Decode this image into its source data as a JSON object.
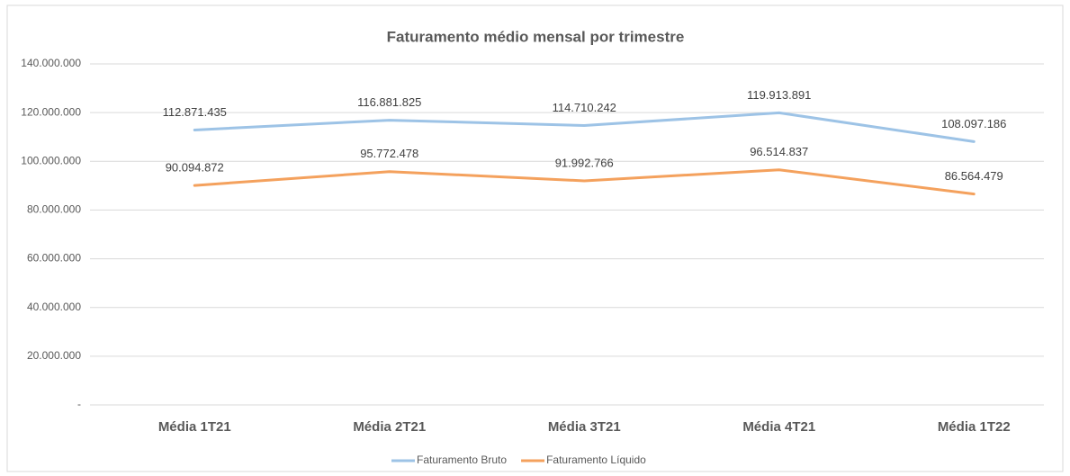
{
  "chart_data": {
    "type": "line",
    "title": "Faturamento médio mensal por trimestre",
    "categories": [
      "Média 1T21",
      "Média 2T21",
      "Média 3T21",
      "Média 4T21",
      "Média 1T22"
    ],
    "series": [
      {
        "name": "Faturamento Bruto",
        "color": "#9dc3e6",
        "values": [
          112871435,
          116881825,
          114710242,
          119913891,
          108097186
        ],
        "value_labels": [
          "112.871.435",
          "116.881.825",
          "114.710.242",
          "119.913.891",
          "108.097.186"
        ]
      },
      {
        "name": "Faturamento Líquido",
        "color": "#f4a15d",
        "values": [
          90094872,
          95772478,
          91992766,
          96514837,
          86564479
        ],
        "value_labels": [
          "90.094.872",
          "95.772.478",
          "91.992.766",
          "96.514.837",
          "86.564.479"
        ]
      }
    ],
    "ylim": [
      0,
      140000000
    ],
    "yticks": [
      {
        "value": 0,
        "label": "-"
      },
      {
        "value": 20000000,
        "label": "20.000.000"
      },
      {
        "value": 40000000,
        "label": "40.000.000"
      },
      {
        "value": 60000000,
        "label": "60.000.000"
      },
      {
        "value": 80000000,
        "label": "80.000.000"
      },
      {
        "value": 100000000,
        "label": "100.000.000"
      },
      {
        "value": 120000000,
        "label": "120.000.000"
      },
      {
        "value": 140000000,
        "label": "140.000.000"
      }
    ],
    "grid": true,
    "legend": "bottom"
  }
}
